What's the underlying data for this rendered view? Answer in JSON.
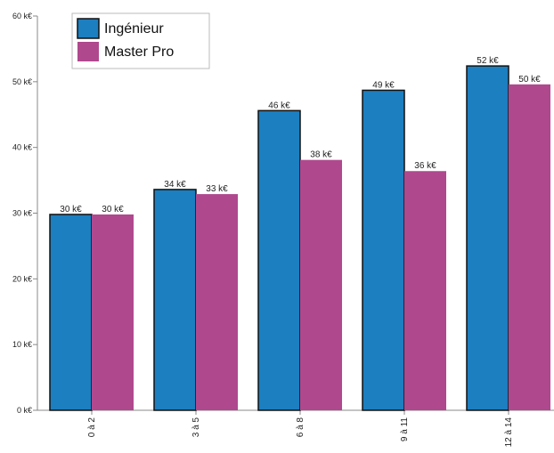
{
  "chart_data": {
    "type": "bar",
    "title": "",
    "xlabel": "",
    "ylabel": "",
    "categories": [
      "0 à 2",
      "3 à 5",
      "6 à 8",
      "9 à 11",
      "12 à 14"
    ],
    "series": [
      {
        "name": "Ingénieur",
        "color": "#1c7fc0",
        "values": [
          29.8,
          33.6,
          45.6,
          48.7,
          52.4
        ],
        "labels": [
          "30 k€",
          "34 k€",
          "46 k€",
          "49 k€",
          "52 k€"
        ]
      },
      {
        "name": "Master Pro",
        "color": "#b0488e",
        "values": [
          29.8,
          32.9,
          38.1,
          36.4,
          49.6
        ],
        "labels": [
          "30 k€",
          "33 k€",
          "38 k€",
          "36 k€",
          "50 k€"
        ]
      }
    ],
    "ylim": [
      0,
      60
    ],
    "yticks": [
      0,
      10,
      20,
      30,
      40,
      50,
      60
    ],
    "ytick_labels": [
      "0 k€",
      "10 k€",
      "20 k€",
      "30 k€",
      "40 k€",
      "50 k€",
      "60 k€"
    ],
    "grid": false,
    "legend_position": "top-left"
  }
}
